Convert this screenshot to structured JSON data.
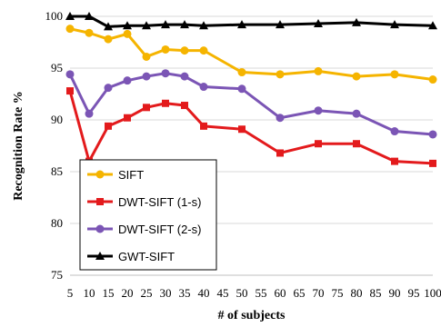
{
  "chart_data": {
    "type": "line",
    "xlabel": "# of subjects",
    "ylabel": "Recognition Rate %",
    "x": [
      5,
      10,
      15,
      20,
      25,
      30,
      35,
      40,
      50,
      60,
      70,
      80,
      90,
      100
    ],
    "xticks": [
      5,
      10,
      15,
      20,
      25,
      30,
      35,
      40,
      45,
      50,
      55,
      60,
      65,
      70,
      75,
      80,
      85,
      90,
      95,
      100
    ],
    "ylim": [
      75,
      100
    ],
    "yticks": [
      75,
      80,
      85,
      90,
      95,
      100
    ],
    "grid": "horizontal",
    "legend_position": "bottom-left",
    "series": [
      {
        "name": "SIFT",
        "color": "#f5b400",
        "marker": "circle",
        "values": [
          98.8,
          98.4,
          97.8,
          98.3,
          96.1,
          96.8,
          96.7,
          96.7,
          94.6,
          94.4,
          94.7,
          94.2,
          94.4,
          93.9
        ]
      },
      {
        "name": "DWT-SIFT (1-s)",
        "color": "#e31a1c",
        "marker": "square",
        "values": [
          92.8,
          86.0,
          89.4,
          90.2,
          91.2,
          91.6,
          91.4,
          89.4,
          89.1,
          86.8,
          87.7,
          87.7,
          86.0,
          85.8
        ]
      },
      {
        "name": "DWT-SIFT (2-s)",
        "color": "#7b55b5",
        "marker": "circle",
        "values": [
          94.4,
          90.6,
          93.1,
          93.8,
          94.2,
          94.5,
          94.2,
          93.2,
          93.0,
          90.2,
          90.9,
          90.6,
          88.9,
          88.6
        ]
      },
      {
        "name": "GWT-SIFT",
        "color": "#000000",
        "marker": "triangle",
        "values": [
          100.0,
          100.0,
          99.0,
          99.1,
          99.1,
          99.2,
          99.2,
          99.1,
          99.2,
          99.2,
          99.3,
          99.4,
          99.2,
          99.1
        ]
      }
    ]
  }
}
